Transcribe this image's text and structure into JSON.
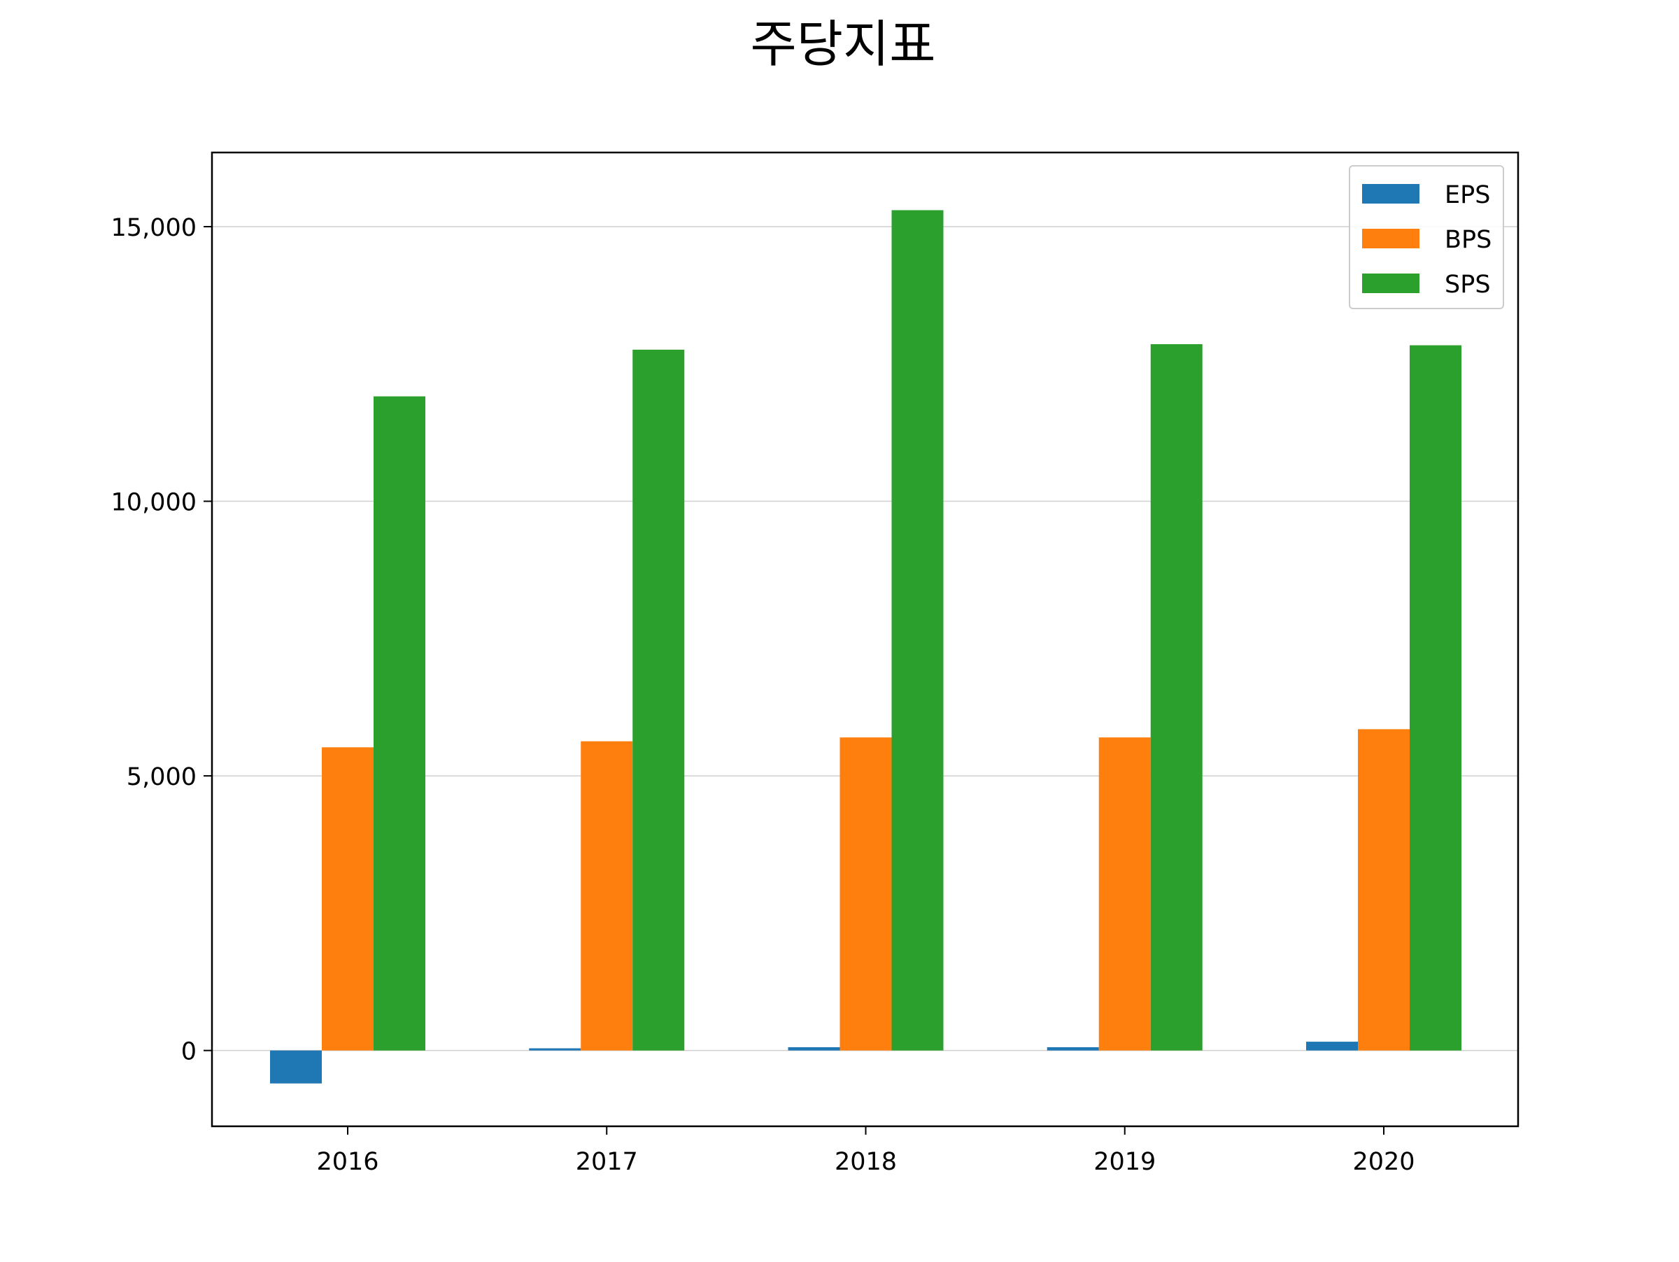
{
  "chart_data": {
    "type": "bar",
    "title": "주당지표",
    "xlabel": "",
    "ylabel": "",
    "categories": [
      "2016",
      "2017",
      "2018",
      "2019",
      "2020"
    ],
    "series": [
      {
        "name": "EPS",
        "values": [
          -600,
          40,
          60,
          60,
          160
        ]
      },
      {
        "name": "BPS",
        "values": [
          5520,
          5630,
          5700,
          5700,
          5850
        ]
      },
      {
        "name": "SPS",
        "values": [
          11910,
          12760,
          15300,
          12860,
          12840
        ]
      }
    ],
    "ylim": [
      -1380,
      16350
    ],
    "yticks": [
      0,
      5000,
      10000,
      15000
    ],
    "ytick_labels": [
      "0",
      "5,000",
      "10,000",
      "15,000"
    ],
    "grid": "y",
    "legend": "top-right",
    "colors": {
      "EPS": "#1f77b4",
      "BPS": "#ff7f0e",
      "SPS": "#2ca02c"
    }
  }
}
